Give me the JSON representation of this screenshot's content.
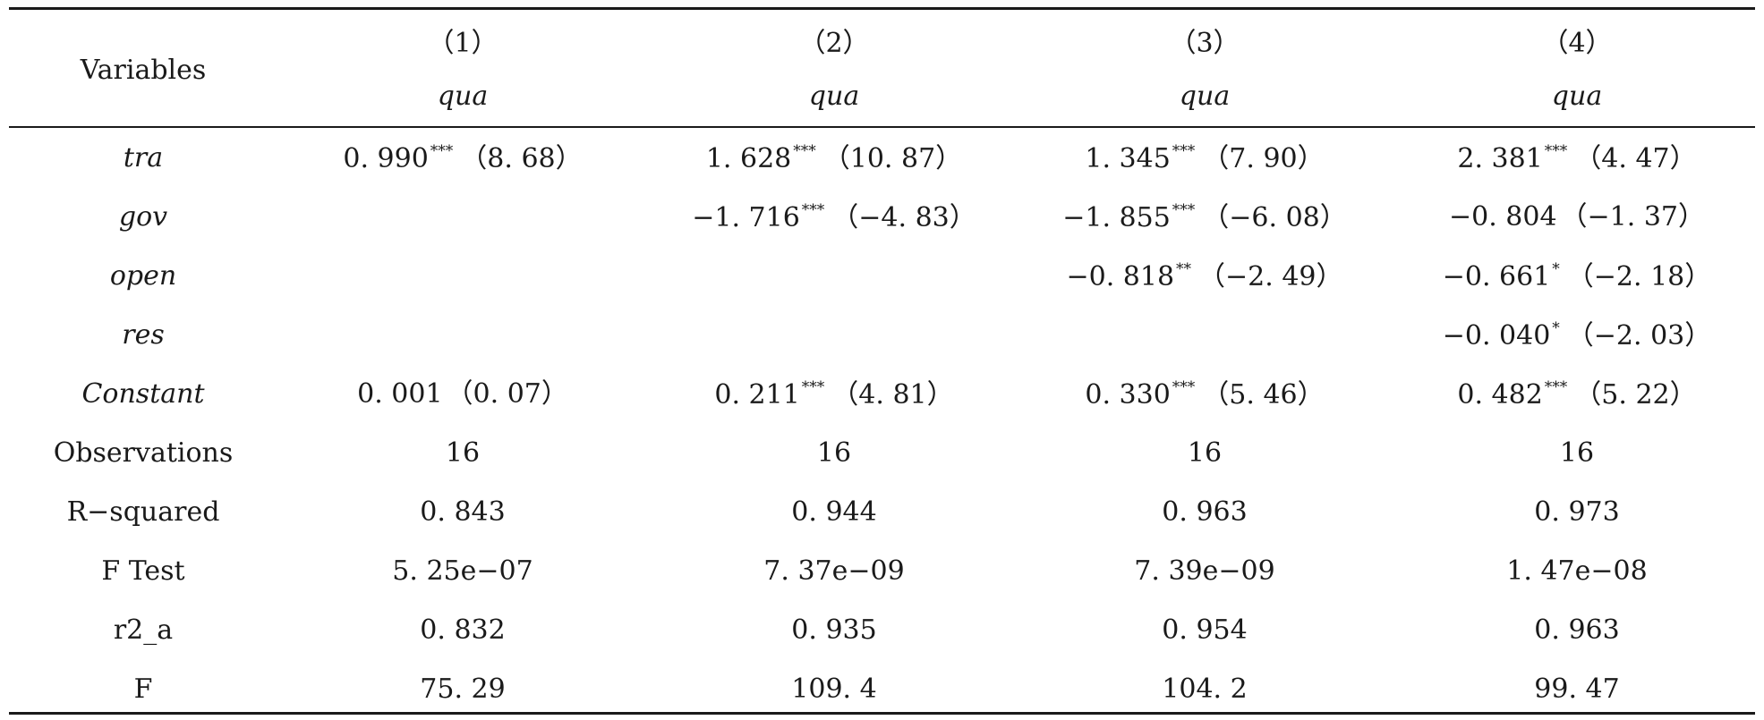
{
  "table": {
    "header": {
      "variables_label": "Variables",
      "models": [
        {
          "number": "（1）",
          "dep_var": "qua"
        },
        {
          "number": "（2）",
          "dep_var": "qua"
        },
        {
          "number": "（3）",
          "dep_var": "qua"
        },
        {
          "number": "（4）",
          "dep_var": "qua"
        }
      ]
    },
    "rows": [
      {
        "variable": "tra",
        "cells": [
          {
            "coef": "0. 990",
            "stars": "***",
            "t": "（8. 68）"
          },
          {
            "coef": "1. 628",
            "stars": "***",
            "t": "（10. 87）"
          },
          {
            "coef": "1. 345",
            "stars": "***",
            "t": "（7. 90）"
          },
          {
            "coef": "2. 381",
            "stars": "***",
            "t": "（4. 47）"
          }
        ]
      },
      {
        "variable": "gov",
        "cells": [
          null,
          {
            "coef": "−1. 716",
            "stars": "***",
            "t": "（−4. 83）"
          },
          {
            "coef": "−1. 855",
            "stars": "***",
            "t": "（−6. 08）"
          },
          {
            "coef": "−0. 804",
            "stars": "",
            "t": "（−1. 37）"
          }
        ]
      },
      {
        "variable": "open",
        "cells": [
          null,
          null,
          {
            "coef": "−0. 818",
            "stars": "**",
            "t": "（−2. 49）"
          },
          {
            "coef": "−0. 661",
            "stars": "*",
            "t": "（−2. 18）"
          }
        ]
      },
      {
        "variable": "res",
        "cells": [
          null,
          null,
          null,
          {
            "coef": "−0. 040",
            "stars": "*",
            "t": "（−2. 03）"
          }
        ]
      },
      {
        "variable": "Constant",
        "cells": [
          {
            "coef": "0. 001",
            "stars": "",
            "t": "（0. 07）"
          },
          {
            "coef": "0. 211",
            "stars": "***",
            "t": "（4. 81）"
          },
          {
            "coef": "0. 330",
            "stars": "***",
            "t": "（5. 46）"
          },
          {
            "coef": "0. 482",
            "stars": "***",
            "t": "（5. 22）"
          }
        ]
      }
    ],
    "stats": [
      {
        "label": "Observations",
        "values": [
          "16",
          "16",
          "16",
          "16"
        ]
      },
      {
        "label": "R−squared",
        "values": [
          "0. 843",
          "0. 944",
          "0. 963",
          "0. 973"
        ]
      },
      {
        "label": "F Test",
        "values": [
          "5. 25e−07",
          "7. 37e−09",
          "7. 39e−09",
          "1. 47e−08"
        ]
      },
      {
        "label": "r2_a",
        "values": [
          "0. 832",
          "0. 935",
          "0. 954",
          "0. 963"
        ]
      },
      {
        "label": "F",
        "values": [
          "75. 29",
          "109. 4",
          "104. 2",
          "99. 47"
        ]
      }
    ]
  }
}
